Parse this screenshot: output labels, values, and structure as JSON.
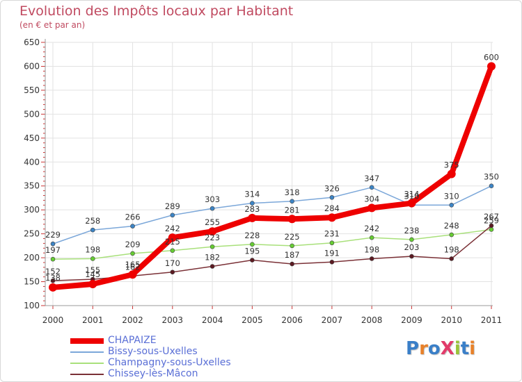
{
  "title": "Evolution des Impôts locaux par Habitant",
  "subtitle": "(en € et par an)",
  "logo": {
    "text": "ProXiti",
    "letter_colors": [
      "#3a7fc8",
      "#e8812a",
      "#3a7fc8",
      "#e23b6a",
      "#9ac43a",
      "#3a7fc8",
      "#e8812a"
    ]
  },
  "chart_data": {
    "type": "line",
    "x": [
      2000,
      2001,
      2002,
      2003,
      2004,
      2005,
      2006,
      2007,
      2008,
      2009,
      2010,
      2011
    ],
    "ylim": [
      100,
      650
    ],
    "yticks": [
      100,
      150,
      200,
      250,
      300,
      350,
      400,
      450,
      500,
      550,
      600,
      650
    ],
    "grid": true,
    "legend_position": "bottom-left",
    "series": [
      {
        "name": "CHAPAIZE",
        "color": "#ee0000",
        "emphasis": "thick",
        "values": [
          138,
          145,
          165,
          242,
          255,
          283,
          281,
          284,
          304,
          314,
          375,
          600
        ],
        "labels": [
          "138",
          "145",
          "165",
          "242",
          "255",
          "283",
          "281",
          "284",
          "304",
          "314",
          "375",
          "600"
        ]
      },
      {
        "name": "Bissy-sous-Uxelles",
        "color": "#7ba7d9",
        "marker": "#3d85c6",
        "values": [
          229,
          258,
          266,
          289,
          303,
          314,
          318,
          326,
          347,
          310,
          310,
          350
        ],
        "labels": [
          "229",
          "258",
          "266",
          "289",
          "303",
          "314",
          "318",
          "326",
          "347",
          "310",
          "310",
          "350"
        ]
      },
      {
        "name": "Champagny-sous-Uxelles",
        "color": "#a8e07a",
        "marker": "#66cc33",
        "values": [
          197,
          198,
          209,
          215,
          223,
          228,
          225,
          231,
          242,
          238,
          248,
          259
        ],
        "labels": [
          "197",
          "198",
          "209",
          "215",
          "223",
          "228",
          "225",
          "231",
          "242",
          "238",
          "248",
          "259"
        ]
      },
      {
        "name": "Chissey-lès-Mâcon",
        "color": "#7a3036",
        "marker": "#5c1a22",
        "values": [
          152,
          155,
          162,
          170,
          182,
          195,
          187,
          191,
          198,
          203,
          198,
          267
        ],
        "labels": [
          "152",
          "155",
          "162",
          "170",
          "182",
          "195",
          "187",
          "191",
          "198",
          "203",
          "198",
          "267"
        ]
      }
    ]
  }
}
